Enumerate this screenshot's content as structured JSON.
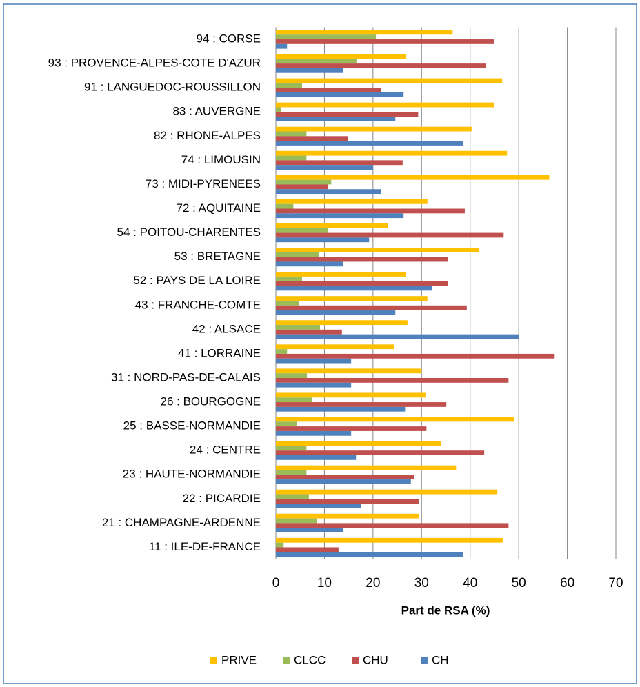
{
  "chart_data": {
    "type": "bar",
    "orientation": "horizontal",
    "x_label": "Part de RSA (%)",
    "categories": [
      "94 : CORSE",
      "93 : PROVENCE-ALPES-COTE D'AZUR",
      "91 : LANGUEDOC-ROUSSILLON",
      "83 : AUVERGNE",
      "82 : RHONE-ALPES",
      "74 : LIMOUSIN",
      "73 : MIDI-PYRENEES",
      "72 : AQUITAINE",
      "54 : POITOU-CHARENTES",
      "53 : BRETAGNE",
      "52 : PAYS DE LA LOIRE",
      "43 : FRANCHE-COMTE",
      "42 : ALSACE",
      "41 : LORRAINE",
      "31 : NORD-PAS-DE-CALAIS",
      "26 : BOURGOGNE",
      "25 : BASSE-NORMANDIE",
      "24 : CENTRE",
      "23 : HAUTE-NORMANDIE",
      "22 : PICARDIE",
      "21 : CHAMPAGNE-ARDENNE",
      "11 : ILE-DE-FRANCE"
    ],
    "series": [
      {
        "name": "PRIVE",
        "color": "#FFC000",
        "values": [
          36.4,
          26.7,
          46.6,
          45.0,
          40.3,
          47.6,
          56.3,
          31.2,
          23.0,
          41.9,
          26.8,
          31.2,
          27.1,
          24.4,
          30.0,
          30.8,
          49.0,
          34.0,
          37.1,
          45.6,
          29.4,
          46.7
        ]
      },
      {
        "name": "CLCC",
        "color": "#9BBB59",
        "values": [
          20.6,
          16.6,
          5.4,
          1.1,
          6.3,
          6.3,
          11.4,
          3.6,
          10.8,
          8.9,
          5.4,
          4.8,
          9.1,
          2.3,
          6.4,
          7.4,
          4.4,
          6.3,
          6.3,
          6.8,
          8.5,
          1.6
        ]
      },
      {
        "name": "CHU",
        "color": "#C0504D",
        "values": [
          44.9,
          43.2,
          21.6,
          29.3,
          14.8,
          26.1,
          10.8,
          38.9,
          46.9,
          35.4,
          35.4,
          39.3,
          13.6,
          57.4,
          47.9,
          35.1,
          31.0,
          42.9,
          28.4,
          29.5,
          47.9,
          12.9
        ]
      },
      {
        "name": "CH",
        "color": "#4F81BD",
        "values": [
          2.3,
          13.8,
          26.3,
          24.6,
          38.6,
          20.0,
          21.6,
          26.3,
          19.2,
          13.8,
          32.2,
          24.6,
          50.0,
          15.5,
          15.5,
          26.6,
          15.5,
          16.5,
          27.8,
          17.5,
          13.9,
          38.6
        ]
      }
    ],
    "xlim": [
      0,
      70
    ],
    "xticks": [
      0,
      10,
      20,
      30,
      40,
      50,
      60,
      70
    ],
    "grid": true,
    "legend": "bottom"
  }
}
